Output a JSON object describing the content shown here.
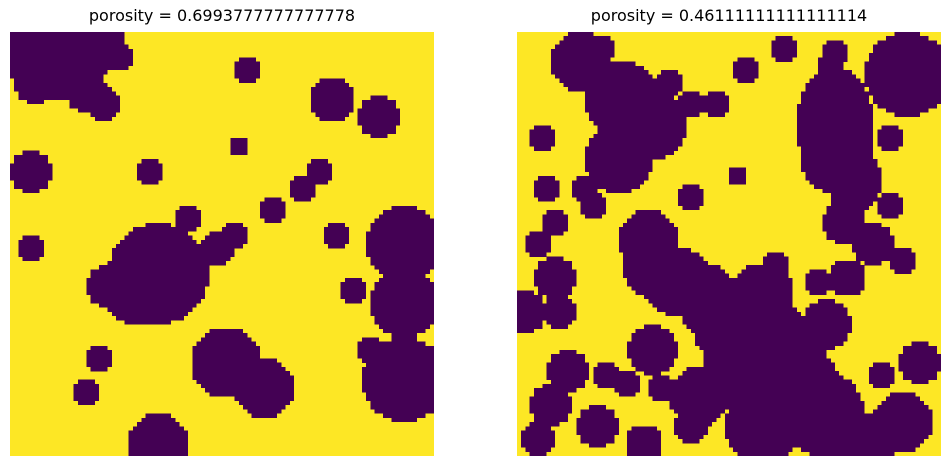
{
  "panels": [
    {
      "title": "porosity = 0.6993777777777778",
      "pore_color": "#fde725",
      "solid_color": "#440154",
      "grains": [
        [
          0.03,
          0.04,
          0.07
        ],
        [
          0.1,
          0.02,
          0.07
        ],
        [
          0.2,
          0.03,
          0.07
        ],
        [
          0.13,
          0.08,
          0.08
        ],
        [
          0.06,
          0.12,
          0.05
        ],
        [
          0.18,
          0.14,
          0.05
        ],
        [
          0.22,
          0.17,
          0.04
        ],
        [
          0.26,
          0.06,
          0.03
        ],
        [
          0.56,
          0.09,
          0.035
        ],
        [
          0.76,
          0.16,
          0.055
        ],
        [
          0.87,
          0.2,
          0.05
        ],
        [
          0.54,
          0.27,
          0.025
        ],
        [
          0.05,
          0.33,
          0.05
        ],
        [
          0.33,
          0.33,
          0.035
        ],
        [
          0.73,
          0.33,
          0.03
        ],
        [
          0.69,
          0.37,
          0.03
        ],
        [
          0.62,
          0.42,
          0.035
        ],
        [
          0.42,
          0.44,
          0.03
        ],
        [
          0.05,
          0.51,
          0.03
        ],
        [
          0.35,
          0.57,
          0.12
        ],
        [
          0.3,
          0.6,
          0.09
        ],
        [
          0.23,
          0.6,
          0.05
        ],
        [
          0.49,
          0.51,
          0.04
        ],
        [
          0.53,
          0.48,
          0.035
        ],
        [
          0.77,
          0.48,
          0.03
        ],
        [
          0.93,
          0.5,
          0.09
        ],
        [
          0.93,
          0.64,
          0.08
        ],
        [
          0.81,
          0.61,
          0.035
        ],
        [
          0.51,
          0.78,
          0.085
        ],
        [
          0.6,
          0.84,
          0.07
        ],
        [
          0.21,
          0.77,
          0.03
        ],
        [
          0.85,
          0.75,
          0.03
        ],
        [
          0.93,
          0.82,
          0.1
        ],
        [
          0.18,
          0.85,
          0.035
        ],
        [
          0.35,
          0.97,
          0.07
        ]
      ]
    },
    {
      "title": "porosity = 0.46111111111111114",
      "pore_color": "#fde725",
      "solid_color": "#440154",
      "grains": [
        [
          0.15,
          0.07,
          0.07
        ],
        [
          0.63,
          0.04,
          0.03
        ],
        [
          0.75,
          0.05,
          0.03
        ],
        [
          0.54,
          0.09,
          0.03
        ],
        [
          0.47,
          0.17,
          0.035
        ],
        [
          0.92,
          0.1,
          0.1
        ],
        [
          0.25,
          0.16,
          0.09
        ],
        [
          0.32,
          0.22,
          0.08
        ],
        [
          0.24,
          0.3,
          0.08
        ],
        [
          0.06,
          0.25,
          0.03
        ],
        [
          0.41,
          0.39,
          0.035
        ],
        [
          0.52,
          0.34,
          0.025
        ],
        [
          0.07,
          0.37,
          0.03
        ],
        [
          0.16,
          0.37,
          0.03
        ],
        [
          0.18,
          0.41,
          0.035
        ],
        [
          0.09,
          0.45,
          0.035
        ],
        [
          0.05,
          0.5,
          0.03
        ],
        [
          0.8,
          0.35,
          0.065
        ],
        [
          0.84,
          0.5,
          0.05
        ],
        [
          0.75,
          0.3,
          0.08
        ],
        [
          0.77,
          0.45,
          0.05
        ],
        [
          0.78,
          0.58,
          0.045
        ],
        [
          0.88,
          0.25,
          0.03
        ],
        [
          0.88,
          0.41,
          0.03
        ],
        [
          0.91,
          0.54,
          0.03
        ],
        [
          0.31,
          0.49,
          0.07
        ],
        [
          0.38,
          0.59,
          0.08
        ],
        [
          0.46,
          0.66,
          0.07
        ],
        [
          0.58,
          0.62,
          0.075
        ],
        [
          0.53,
          0.79,
          0.095
        ],
        [
          0.65,
          0.77,
          0.08
        ],
        [
          0.43,
          0.86,
          0.07
        ],
        [
          0.32,
          0.75,
          0.06
        ],
        [
          0.09,
          0.58,
          0.05
        ],
        [
          0.1,
          0.66,
          0.04
        ],
        [
          0.02,
          0.66,
          0.05
        ],
        [
          0.61,
          0.55,
          0.03
        ],
        [
          0.71,
          0.59,
          0.03
        ],
        [
          0.73,
          0.69,
          0.06
        ],
        [
          0.58,
          0.93,
          0.09
        ],
        [
          0.72,
          0.9,
          0.1
        ],
        [
          0.82,
          0.97,
          0.07
        ],
        [
          0.95,
          0.78,
          0.05
        ],
        [
          0.91,
          0.92,
          0.07
        ],
        [
          0.86,
          0.81,
          0.035
        ],
        [
          0.12,
          0.8,
          0.05
        ],
        [
          0.08,
          0.88,
          0.05
        ],
        [
          0.19,
          0.93,
          0.05
        ],
        [
          0.3,
          0.97,
          0.045
        ],
        [
          0.05,
          0.96,
          0.04
        ],
        [
          0.21,
          0.81,
          0.035
        ],
        [
          0.41,
          0.93,
          0.04
        ],
        [
          0.26,
          0.83,
          0.03
        ],
        [
          0.34,
          0.84,
          0.03
        ],
        [
          0.2,
          0.04,
          0.035
        ],
        [
          0.36,
          0.12,
          0.035
        ],
        [
          0.41,
          0.17,
          0.035
        ],
        [
          0.74,
          0.08,
          0.035
        ]
      ],
      "blobs": [
        [
          0.75,
          0.22,
          0.09,
          0.14
        ],
        [
          0.79,
          0.34,
          0.06,
          0.1
        ],
        [
          0.32,
          0.55,
          0.07,
          0.08
        ],
        [
          0.45,
          0.6,
          0.06,
          0.05
        ],
        [
          0.6,
          0.72,
          0.1,
          0.08
        ],
        [
          0.68,
          0.82,
          0.08,
          0.07
        ],
        [
          0.5,
          0.72,
          0.08,
          0.06
        ]
      ]
    }
  ]
}
